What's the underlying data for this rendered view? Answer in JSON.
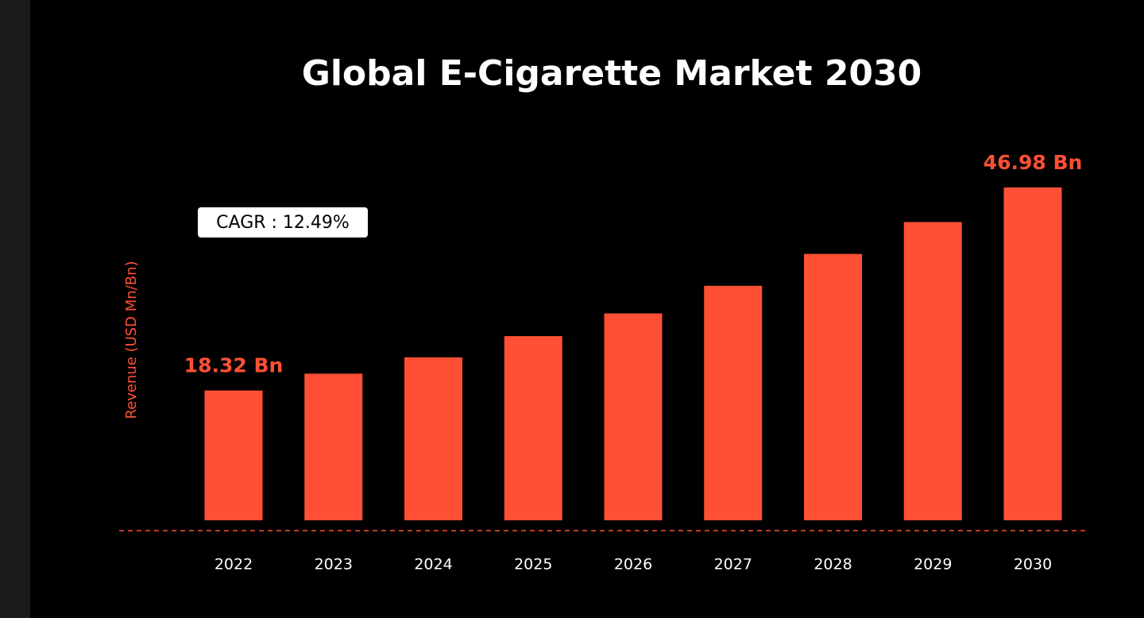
{
  "chart_data": {
    "type": "bar",
    "title": "Global E-Cigarette Market 2030",
    "y_label": "Revenue (USD Mn/Bn)",
    "annotation": "CAGR : 12.49%",
    "categories": [
      "2022",
      "2023",
      "2024",
      "2025",
      "2026",
      "2027",
      "2028",
      "2029",
      "2030"
    ],
    "values": [
      18.32,
      20.7,
      23.0,
      26.0,
      29.2,
      33.1,
      37.6,
      42.1,
      46.98
    ],
    "value_labels": [
      "18.32 Bn",
      null,
      null,
      null,
      null,
      null,
      null,
      null,
      "46.98 Bn"
    ],
    "color": "#ff5035"
  }
}
